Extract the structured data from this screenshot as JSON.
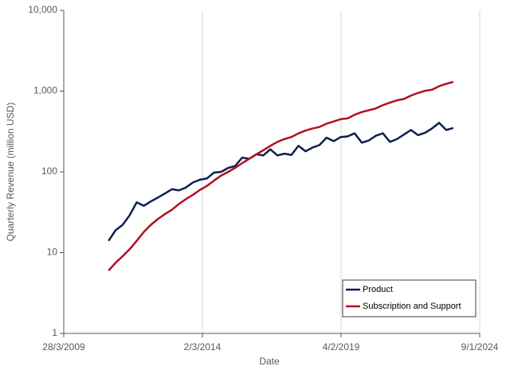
{
  "chart_data": {
    "type": "line",
    "xlabel": "Date",
    "ylabel": "Quarterly Revenue (million USD)",
    "x": [
      "2010-10-31",
      "2011-01-31",
      "2011-04-30",
      "2011-07-31",
      "2011-10-31",
      "2012-01-31",
      "2012-04-30",
      "2012-07-31",
      "2012-10-31",
      "2013-01-31",
      "2013-04-30",
      "2013-07-31",
      "2013-10-31",
      "2014-01-31",
      "2014-04-30",
      "2014-07-31",
      "2014-10-31",
      "2015-01-31",
      "2015-04-30",
      "2015-07-31",
      "2015-10-31",
      "2016-01-31",
      "2016-04-30",
      "2016-07-31",
      "2016-10-31",
      "2017-01-31",
      "2017-04-30",
      "2017-07-31",
      "2017-10-31",
      "2018-01-31",
      "2018-04-30",
      "2018-07-31",
      "2018-10-31",
      "2019-01-31",
      "2019-04-30",
      "2019-07-31",
      "2019-10-31",
      "2020-01-31",
      "2020-04-30",
      "2020-07-31",
      "2020-10-31",
      "2021-01-31",
      "2021-04-30",
      "2021-07-31",
      "2021-10-31",
      "2022-01-31",
      "2022-04-30",
      "2022-07-31",
      "2022-10-31",
      "2023-01-31"
    ],
    "series": [
      {
        "name": "Product",
        "color": "#0c1f4f",
        "values": [
          14,
          19,
          22,
          29,
          42,
          38,
          43,
          48,
          54,
          61,
          59,
          64,
          74,
          80,
          83,
          98,
          100,
          112,
          118,
          150,
          145,
          165,
          160,
          190,
          160,
          168,
          162,
          210,
          180,
          200,
          215,
          265,
          240,
          270,
          275,
          300,
          230,
          245,
          280,
          300,
          235,
          255,
          290,
          330,
          285,
          305,
          345,
          405,
          330,
          350
        ]
      },
      {
        "name": "Subscription and Support",
        "color": "#b01020",
        "values": [
          6,
          7.5,
          9,
          11,
          14,
          18,
          22,
          26,
          30,
          34,
          40,
          46,
          52,
          60,
          67,
          78,
          90,
          100,
          112,
          128,
          145,
          165,
          185,
          210,
          235,
          255,
          270,
          300,
          325,
          345,
          360,
          395,
          420,
          450,
          460,
          510,
          550,
          580,
          610,
          670,
          720,
          770,
          800,
          880,
          950,
          1010,
          1040,
          1150,
          1230,
          1300
        ]
      }
    ],
    "xlim": [
      "2009-03-28",
      "2024-01-09"
    ],
    "xticks": [
      {
        "value": "2009-03-28",
        "label": "28/3/2009"
      },
      {
        "value": "2014-03-02",
        "label": "2/3/2014"
      },
      {
        "value": "2019-02-04",
        "label": "4/2/2019"
      },
      {
        "value": "2024-01-09",
        "label": "9/1/2024"
      }
    ],
    "ylim": [
      1,
      10000
    ],
    "yticks": [
      1,
      10,
      100,
      {
        "value": 1000,
        "label": "1,000"
      },
      {
        "value": 10000,
        "label": "10,000"
      }
    ],
    "yscale": "log",
    "xgrid": true,
    "legend": "lower right"
  }
}
